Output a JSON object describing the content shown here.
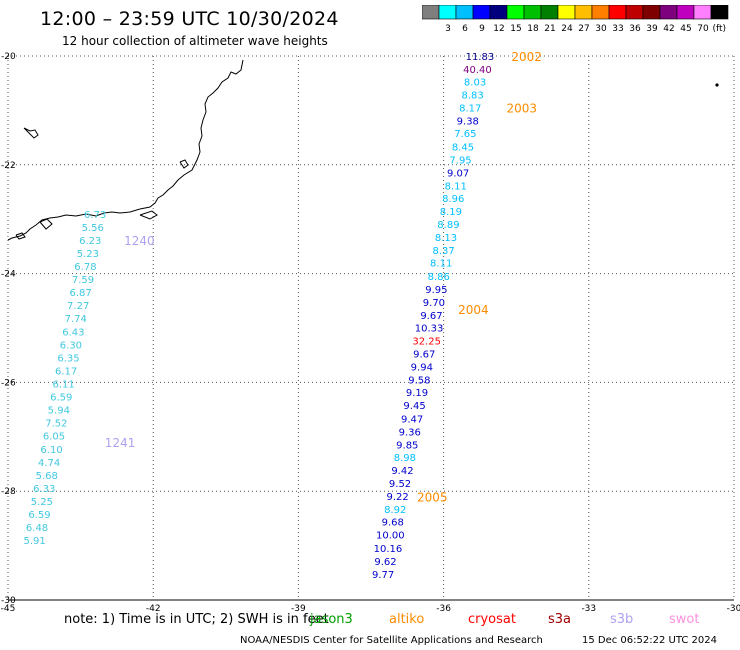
{
  "header": {
    "title": "12:00 – 23:59 UTC 10/30/2024",
    "subtitle": "12 hour collection of altimeter wave heights"
  },
  "legend": {
    "units": "(ft)",
    "bins": [
      {
        "label": "",
        "color": "#7f7f7f"
      },
      {
        "label": "3",
        "color": "#00ffff"
      },
      {
        "label": "6",
        "color": "#00bfff"
      },
      {
        "label": "9",
        "color": "#0000ff"
      },
      {
        "label": "12",
        "color": "#00007f"
      },
      {
        "label": "15",
        "color": "#00ff00"
      },
      {
        "label": "18",
        "color": "#00bf00"
      },
      {
        "label": "21",
        "color": "#007f00"
      },
      {
        "label": "24",
        "color": "#ffff00"
      },
      {
        "label": "27",
        "color": "#ffbf00"
      },
      {
        "label": "30",
        "color": "#ff7f00"
      },
      {
        "label": "33",
        "color": "#ff0000"
      },
      {
        "label": "36",
        "color": "#bf0000"
      },
      {
        "label": "39",
        "color": "#7f0000"
      },
      {
        "label": "42",
        "color": "#7f007f"
      },
      {
        "label": "45",
        "color": "#bf00bf"
      },
      {
        "label": "70",
        "color": "#ff7fff"
      },
      {
        "label": "",
        "color": "#000000"
      }
    ]
  },
  "map": {
    "lon_range": [
      -45,
      -30
    ],
    "lat_range": [
      -30,
      -20
    ],
    "lon_ticks": [
      "-45",
      "-42",
      "-39",
      "-36",
      "-33",
      "-30"
    ],
    "lat_ticks": [
      "-20",
      "-22",
      "-24",
      "-26",
      "-28",
      "-30"
    ],
    "track_east": {
      "pass_labels": [
        {
          "text": "2002",
          "lon": -34.6,
          "lat": -20.0,
          "color": "#ff8c00"
        },
        {
          "text": "2003",
          "lon": -34.7,
          "lat": -20.95,
          "color": "#ff8c00"
        },
        {
          "text": "2004",
          "lon": -35.7,
          "lat": -24.65,
          "color": "#ff8c00"
        },
        {
          "text": "2005",
          "lon": -36.55,
          "lat": -28.1,
          "color": "#ff8c00"
        }
      ],
      "values": [
        {
          "text": "11.83",
          "lon": -35.25,
          "lat": -20.0,
          "color": "#00008b"
        },
        {
          "text": "40.40",
          "lon": -35.3,
          "lat": -20.24,
          "color": "#800080"
        },
        {
          "text": "8.03",
          "lon": -35.35,
          "lat": -20.47,
          "color": "#00bfff"
        },
        {
          "text": "8.83",
          "lon": -35.4,
          "lat": -20.71,
          "color": "#00bfff"
        },
        {
          "text": "8.17",
          "lon": -35.45,
          "lat": -20.95,
          "color": "#00bfff"
        },
        {
          "text": "9.38",
          "lon": -35.5,
          "lat": -21.19,
          "color": "#0000cd"
        },
        {
          "text": "7.65",
          "lon": -35.55,
          "lat": -21.42,
          "color": "#00bfff"
        },
        {
          "text": "8.45",
          "lon": -35.6,
          "lat": -21.66,
          "color": "#00bfff"
        },
        {
          "text": "7.95",
          "lon": -35.65,
          "lat": -21.9,
          "color": "#00bfff"
        },
        {
          "text": "9.07",
          "lon": -35.7,
          "lat": -22.14,
          "color": "#0000cd"
        },
        {
          "text": "8.11",
          "lon": -35.75,
          "lat": -22.38,
          "color": "#00bfff"
        },
        {
          "text": "8.96",
          "lon": -35.8,
          "lat": -22.61,
          "color": "#00bfff"
        },
        {
          "text": "8.19",
          "lon": -35.85,
          "lat": -22.85,
          "color": "#00bfff"
        },
        {
          "text": "8.89",
          "lon": -35.9,
          "lat": -23.09,
          "color": "#00bfff"
        },
        {
          "text": "8.13",
          "lon": -35.95,
          "lat": -23.33,
          "color": "#00bfff"
        },
        {
          "text": "8.37",
          "lon": -36.0,
          "lat": -23.57,
          "color": "#00bfff"
        },
        {
          "text": "8.11",
          "lon": -36.05,
          "lat": -23.8,
          "color": "#00bfff"
        },
        {
          "text": "8.86",
          "lon": -36.1,
          "lat": -24.04,
          "color": "#00bfff"
        },
        {
          "text": "9.95",
          "lon": -36.15,
          "lat": -24.28,
          "color": "#0000cd"
        },
        {
          "text": "9.70",
          "lon": -36.2,
          "lat": -24.52,
          "color": "#0000cd"
        },
        {
          "text": "9.67",
          "lon": -36.25,
          "lat": -24.76,
          "color": "#0000cd"
        },
        {
          "text": "10.33",
          "lon": -36.3,
          "lat": -24.99,
          "color": "#0000cd"
        },
        {
          "text": "32.25",
          "lon": -36.35,
          "lat": -25.23,
          "color": "#ff0000"
        },
        {
          "text": "9.67",
          "lon": -36.4,
          "lat": -25.47,
          "color": "#0000cd"
        },
        {
          "text": "9.94",
          "lon": -36.45,
          "lat": -25.71,
          "color": "#0000cd"
        },
        {
          "text": "9.58",
          "lon": -36.5,
          "lat": -25.95,
          "color": "#0000cd"
        },
        {
          "text": "9.19",
          "lon": -36.55,
          "lat": -26.18,
          "color": "#0000cd"
        },
        {
          "text": "9.45",
          "lon": -36.6,
          "lat": -26.42,
          "color": "#0000cd"
        },
        {
          "text": "9.47",
          "lon": -36.65,
          "lat": -26.66,
          "color": "#0000cd"
        },
        {
          "text": "9.36",
          "lon": -36.7,
          "lat": -26.9,
          "color": "#0000cd"
        },
        {
          "text": "9.85",
          "lon": -36.75,
          "lat": -27.14,
          "color": "#0000cd"
        },
        {
          "text": "8.98",
          "lon": -36.8,
          "lat": -27.37,
          "color": "#00bfff"
        },
        {
          "text": "9.42",
          "lon": -36.85,
          "lat": -27.61,
          "color": "#0000cd"
        },
        {
          "text": "9.52",
          "lon": -36.9,
          "lat": -27.85,
          "color": "#0000cd"
        },
        {
          "text": "9.22",
          "lon": -36.95,
          "lat": -28.09,
          "color": "#0000cd"
        },
        {
          "text": "8.92",
          "lon": -37.0,
          "lat": -28.33,
          "color": "#00bfff"
        },
        {
          "text": "9.68",
          "lon": -37.05,
          "lat": -28.56,
          "color": "#0000cd"
        },
        {
          "text": "10.00",
          "lon": -37.1,
          "lat": -28.8,
          "color": "#0000cd"
        },
        {
          "text": "10.16",
          "lon": -37.15,
          "lat": -29.04,
          "color": "#0000cd"
        },
        {
          "text": "9.62",
          "lon": -37.2,
          "lat": -29.28,
          "color": "#0000cd"
        },
        {
          "text": "9.77",
          "lon": -37.25,
          "lat": -29.52,
          "color": "#0000cd"
        }
      ]
    },
    "track_west": {
      "pass_labels": [
        {
          "text": "1240",
          "lon": -42.6,
          "lat": -23.38,
          "color": "#b0a0f0"
        },
        {
          "text": "1241",
          "lon": -43.0,
          "lat": -27.1,
          "color": "#b0a0f0"
        }
      ],
      "values": [
        {
          "text": "6.73",
          "lon": -43.2,
          "lat": -22.9,
          "color": "#40c8e0"
        },
        {
          "text": "5.56",
          "lon": -43.25,
          "lat": -23.14,
          "color": "#40c8e0"
        },
        {
          "text": "6.23",
          "lon": -43.3,
          "lat": -23.38,
          "color": "#40c8e0"
        },
        {
          "text": "5.23",
          "lon": -43.35,
          "lat": -23.62,
          "color": "#40c8e0"
        },
        {
          "text": "6.78",
          "lon": -43.4,
          "lat": -23.86,
          "color": "#40c8e0"
        },
        {
          "text": "7.59",
          "lon": -43.45,
          "lat": -24.1,
          "color": "#40c8e0"
        },
        {
          "text": "6.87",
          "lon": -43.5,
          "lat": -24.34,
          "color": "#40c8e0"
        },
        {
          "text": "7.27",
          "lon": -43.55,
          "lat": -24.58,
          "color": "#40c8e0"
        },
        {
          "text": "7.74",
          "lon": -43.6,
          "lat": -24.82,
          "color": "#40c8e0"
        },
        {
          "text": "6.43",
          "lon": -43.65,
          "lat": -25.06,
          "color": "#40c8e0"
        },
        {
          "text": "6.30",
          "lon": -43.7,
          "lat": -25.3,
          "color": "#40c8e0"
        },
        {
          "text": "6.35",
          "lon": -43.75,
          "lat": -25.54,
          "color": "#40c8e0"
        },
        {
          "text": "6.17",
          "lon": -43.8,
          "lat": -25.78,
          "color": "#40c8e0"
        },
        {
          "text": "6.11",
          "lon": -43.85,
          "lat": -26.02,
          "color": "#40c8e0"
        },
        {
          "text": "6.59",
          "lon": -43.9,
          "lat": -26.26,
          "color": "#40c8e0"
        },
        {
          "text": "5.94",
          "lon": -43.95,
          "lat": -26.5,
          "color": "#40c8e0"
        },
        {
          "text": "7.52",
          "lon": -44.0,
          "lat": -26.74,
          "color": "#40c8e0"
        },
        {
          "text": "6.05",
          "lon": -44.05,
          "lat": -26.98,
          "color": "#40c8e0"
        },
        {
          "text": "6.10",
          "lon": -44.1,
          "lat": -27.22,
          "color": "#40c8e0"
        },
        {
          "text": "4.74",
          "lon": -44.15,
          "lat": -27.46,
          "color": "#40c8e0"
        },
        {
          "text": "5.68",
          "lon": -44.2,
          "lat": -27.7,
          "color": "#40c8e0"
        },
        {
          "text": "6.33",
          "lon": -44.25,
          "lat": -27.94,
          "color": "#40c8e0"
        },
        {
          "text": "5.25",
          "lon": -44.3,
          "lat": -28.18,
          "color": "#40c8e0"
        },
        {
          "text": "6.59",
          "lon": -44.35,
          "lat": -28.42,
          "color": "#40c8e0"
        },
        {
          "text": "6.48",
          "lon": -44.4,
          "lat": -28.66,
          "color": "#40c8e0"
        },
        {
          "text": "5.91",
          "lon": -44.45,
          "lat": -28.9,
          "color": "#40c8e0"
        }
      ]
    }
  },
  "footer": {
    "note": "note:  1) Time is in UTC; 2) SWH is in feet",
    "satellites": [
      {
        "name": "jason3",
        "color": "#00a000"
      },
      {
        "name": "altiko",
        "color": "#ff8c00"
      },
      {
        "name": "cryosat",
        "color": "#ff0000"
      },
      {
        "name": "s3a",
        "color": "#a00000"
      },
      {
        "name": "s3b",
        "color": "#b0a0f0"
      },
      {
        "name": "swot",
        "color": "#ff90e0"
      }
    ],
    "credit": "NOAA/NESDIS Center for Satellite Applications and Research",
    "timestamp": "15 Dec 06:52:22 UTC 2024"
  }
}
